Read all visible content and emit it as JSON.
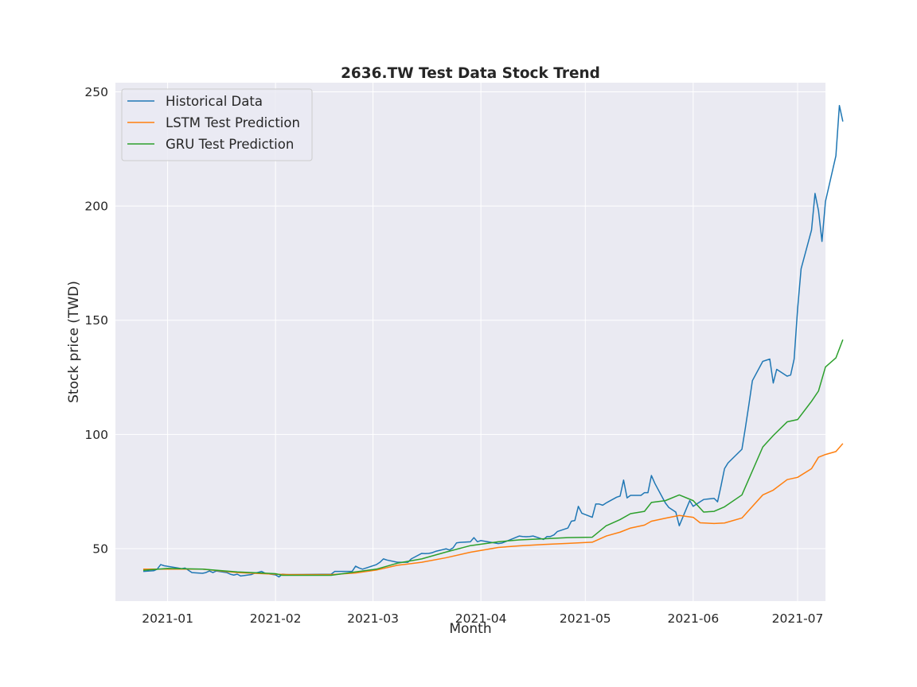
{
  "chart_data": {
    "type": "line",
    "title": "2636.TW  Test Data Stock Trend",
    "xlabel": "Month",
    "ylabel": "Stock price (TWD)",
    "x_type": "date",
    "xlim": [
      "2020-12-17",
      "2021-07-09"
    ],
    "ylim": [
      27,
      254
    ],
    "x_ticks": [
      "2021-01-01",
      "2021-02-01",
      "2021-03-01",
      "2021-04-01",
      "2021-05-01",
      "2021-06-01",
      "2021-07-01"
    ],
    "x_tick_labels": [
      "2021-01",
      "2021-02",
      "2021-03",
      "2021-04",
      "2021-05",
      "2021-06",
      "2021-07"
    ],
    "y_ticks": [
      50,
      100,
      150,
      200,
      250
    ],
    "y_tick_labels": [
      "50",
      "100",
      "150",
      "200",
      "250"
    ],
    "grid": true,
    "legend_position": "upper-left",
    "series": [
      {
        "name": "Historical Data",
        "color": "#1f77b4",
        "points": [
          [
            "2020-12-25",
            40
          ],
          [
            "2020-12-28",
            40.3
          ],
          [
            "2020-12-29",
            41
          ],
          [
            "2020-12-30",
            43
          ],
          [
            "2020-12-31",
            42.5
          ],
          [
            "2021-01-04",
            41.5
          ],
          [
            "2021-01-05",
            41.2
          ],
          [
            "2021-01-06",
            41.5
          ],
          [
            "2021-01-07",
            40.5
          ],
          [
            "2021-01-08",
            39.5
          ],
          [
            "2021-01-11",
            39.2
          ],
          [
            "2021-01-12",
            39.5
          ],
          [
            "2021-01-13",
            40.2
          ],
          [
            "2021-01-14",
            39.5
          ],
          [
            "2021-01-15",
            40.2
          ],
          [
            "2021-01-18",
            39.5
          ],
          [
            "2021-01-19",
            38.8
          ],
          [
            "2021-01-20",
            38.4
          ],
          [
            "2021-01-21",
            38.8
          ],
          [
            "2021-01-22",
            38
          ],
          [
            "2021-01-25",
            38.6
          ],
          [
            "2021-01-26",
            39.2
          ],
          [
            "2021-01-27",
            39.6
          ],
          [
            "2021-01-28",
            40
          ],
          [
            "2021-01-29",
            39.2
          ],
          [
            "2021-02-01",
            38.5
          ],
          [
            "2021-02-02",
            37.6
          ],
          [
            "2021-02-03",
            38.8
          ],
          [
            "2021-02-04",
            38.6
          ],
          [
            "2021-02-05",
            38.6
          ],
          [
            "2021-02-17",
            38.8
          ],
          [
            "2021-02-18",
            40
          ],
          [
            "2021-02-19",
            40
          ],
          [
            "2021-02-22",
            40
          ],
          [
            "2021-02-23",
            40
          ],
          [
            "2021-02-24",
            42.3
          ],
          [
            "2021-02-25",
            41.5
          ],
          [
            "2021-02-26",
            41
          ],
          [
            "2021-03-02",
            43
          ],
          [
            "2021-03-03",
            44
          ],
          [
            "2021-03-04",
            45.5
          ],
          [
            "2021-03-05",
            45
          ],
          [
            "2021-03-08",
            44
          ],
          [
            "2021-03-09",
            44
          ],
          [
            "2021-03-10",
            44
          ],
          [
            "2021-03-11",
            44
          ],
          [
            "2021-03-12",
            45.5
          ],
          [
            "2021-03-15",
            47.9
          ],
          [
            "2021-03-16",
            47.8
          ],
          [
            "2021-03-17",
            47.9
          ],
          [
            "2021-03-18",
            48.2
          ],
          [
            "2021-03-19",
            48.8
          ],
          [
            "2021-03-22",
            49.9
          ],
          [
            "2021-03-23",
            49.4
          ],
          [
            "2021-03-24",
            50.3
          ],
          [
            "2021-03-25",
            52.5
          ],
          [
            "2021-03-26",
            52.7
          ],
          [
            "2021-03-29",
            53
          ],
          [
            "2021-03-30",
            54.8
          ],
          [
            "2021-03-31",
            53
          ],
          [
            "2021-04-01",
            53.5
          ],
          [
            "2021-04-06",
            52.2
          ],
          [
            "2021-04-07",
            52.4
          ],
          [
            "2021-04-08",
            53
          ],
          [
            "2021-04-09",
            53.6
          ],
          [
            "2021-04-12",
            55.5
          ],
          [
            "2021-04-13",
            55.3
          ],
          [
            "2021-04-14",
            55.2
          ],
          [
            "2021-04-15",
            55.3
          ],
          [
            "2021-04-16",
            55.5
          ],
          [
            "2021-04-19",
            54
          ],
          [
            "2021-04-20",
            55.3
          ],
          [
            "2021-04-21",
            55.3
          ],
          [
            "2021-04-22",
            56
          ],
          [
            "2021-04-23",
            57.5
          ],
          [
            "2021-04-26",
            59
          ],
          [
            "2021-04-27",
            62
          ],
          [
            "2021-04-28",
            62.3
          ],
          [
            "2021-04-29",
            68.5
          ],
          [
            "2021-04-30",
            65.5
          ],
          [
            "2021-05-03",
            63.7
          ],
          [
            "2021-05-04",
            69.5
          ],
          [
            "2021-05-05",
            69.5
          ],
          [
            "2021-05-06",
            69
          ],
          [
            "2021-05-07",
            70
          ],
          [
            "2021-05-10",
            72.5
          ],
          [
            "2021-05-11",
            73
          ],
          [
            "2021-05-12",
            80
          ],
          [
            "2021-05-13",
            72.2
          ],
          [
            "2021-05-14",
            73.3
          ],
          [
            "2021-05-17",
            73.3
          ],
          [
            "2021-05-18",
            74.5
          ],
          [
            "2021-05-19",
            74.5
          ],
          [
            "2021-05-20",
            82
          ],
          [
            "2021-05-21",
            78.5
          ],
          [
            "2021-05-24",
            70
          ],
          [
            "2021-05-25",
            68
          ],
          [
            "2021-05-26",
            67
          ],
          [
            "2021-05-27",
            66
          ],
          [
            "2021-05-28",
            60
          ],
          [
            "2021-05-31",
            71
          ],
          [
            "2021-06-01",
            68.5
          ],
          [
            "2021-06-02",
            69.5
          ],
          [
            "2021-06-03",
            70.5
          ],
          [
            "2021-06-04",
            71.5
          ],
          [
            "2021-06-07",
            72
          ],
          [
            "2021-06-08",
            70.5
          ],
          [
            "2021-06-09",
            77.5
          ],
          [
            "2021-06-10",
            85
          ],
          [
            "2021-06-11",
            87.5
          ],
          [
            "2021-06-15",
            93.5
          ],
          [
            "2021-06-16",
            103
          ],
          [
            "2021-06-17",
            113
          ],
          [
            "2021-06-18",
            123.5
          ],
          [
            "2021-06-21",
            132
          ],
          [
            "2021-06-22",
            132.5
          ],
          [
            "2021-06-23",
            133
          ],
          [
            "2021-06-24",
            122.5
          ],
          [
            "2021-06-25",
            128.5
          ],
          [
            "2021-06-28",
            125.5
          ],
          [
            "2021-06-29",
            126
          ],
          [
            "2021-06-30",
            133
          ],
          [
            "2021-07-01",
            155
          ],
          [
            "2021-07-02",
            172.5
          ],
          [
            "2021-07-05",
            189.5
          ],
          [
            "2021-07-06",
            205.5
          ],
          [
            "2021-07-07",
            198
          ],
          [
            "2021-07-08",
            184.5
          ],
          [
            "2021-07-09",
            202
          ],
          [
            "2021-07-12",
            222
          ],
          [
            "2021-07-13",
            244
          ],
          [
            "2021-07-14",
            237
          ]
        ]
      },
      {
        "name": "LSTM Test Prediction",
        "color": "#ff7f0e",
        "points": [
          [
            "2020-12-25",
            41
          ],
          [
            "2021-01-01",
            41
          ],
          [
            "2021-01-11",
            41
          ],
          [
            "2021-01-21",
            39.5
          ],
          [
            "2021-02-01",
            38.8
          ],
          [
            "2021-02-05",
            38.6
          ],
          [
            "2021-02-17",
            38.6
          ],
          [
            "2021-02-24",
            39.3
          ],
          [
            "2021-03-02",
            40.6
          ],
          [
            "2021-03-08",
            42.7
          ],
          [
            "2021-03-15",
            44
          ],
          [
            "2021-03-22",
            46
          ],
          [
            "2021-03-29",
            48.4
          ],
          [
            "2021-04-06",
            50.5
          ],
          [
            "2021-04-12",
            51.2
          ],
          [
            "2021-04-19",
            51.8
          ],
          [
            "2021-04-26",
            52.3
          ],
          [
            "2021-05-03",
            52.8
          ],
          [
            "2021-05-07",
            55.5
          ],
          [
            "2021-05-11",
            57.2
          ],
          [
            "2021-05-14",
            59
          ],
          [
            "2021-05-18",
            60.3
          ],
          [
            "2021-05-20",
            62
          ],
          [
            "2021-05-24",
            63.3
          ],
          [
            "2021-05-28",
            64.5
          ],
          [
            "2021-06-01",
            63.7
          ],
          [
            "2021-06-03",
            61.3
          ],
          [
            "2021-06-07",
            61
          ],
          [
            "2021-06-10",
            61.2
          ],
          [
            "2021-06-15",
            63.4
          ],
          [
            "2021-06-21",
            73.5
          ],
          [
            "2021-06-24",
            75.6
          ],
          [
            "2021-06-28",
            80.2
          ],
          [
            "2021-07-01",
            81.2
          ],
          [
            "2021-07-05",
            85
          ],
          [
            "2021-07-07",
            90
          ],
          [
            "2021-07-09",
            91.2
          ],
          [
            "2021-07-12",
            92.5
          ],
          [
            "2021-07-14",
            96
          ]
        ]
      },
      {
        "name": "GRU Test Prediction",
        "color": "#2ca02c",
        "points": [
          [
            "2020-12-25",
            40.5
          ],
          [
            "2021-01-01",
            41.3
          ],
          [
            "2021-01-11",
            41
          ],
          [
            "2021-01-21",
            39.8
          ],
          [
            "2021-02-01",
            39
          ],
          [
            "2021-02-03",
            38.3
          ],
          [
            "2021-02-17",
            38.3
          ],
          [
            "2021-02-24",
            39.8
          ],
          [
            "2021-03-02",
            41
          ],
          [
            "2021-03-08",
            43.6
          ],
          [
            "2021-03-15",
            45.5
          ],
          [
            "2021-03-22",
            48.5
          ],
          [
            "2021-03-29",
            51.3
          ],
          [
            "2021-04-06",
            53
          ],
          [
            "2021-04-12",
            53.8
          ],
          [
            "2021-04-19",
            54.3
          ],
          [
            "2021-04-26",
            54.8
          ],
          [
            "2021-05-03",
            55
          ],
          [
            "2021-05-07",
            60
          ],
          [
            "2021-05-11",
            62.7
          ],
          [
            "2021-05-14",
            65.3
          ],
          [
            "2021-05-18",
            66.3
          ],
          [
            "2021-05-20",
            70.2
          ],
          [
            "2021-05-24",
            71
          ],
          [
            "2021-05-28",
            73.5
          ],
          [
            "2021-06-01",
            71
          ],
          [
            "2021-06-04",
            66
          ],
          [
            "2021-06-07",
            66.3
          ],
          [
            "2021-06-10",
            68.3
          ],
          [
            "2021-06-15",
            73.5
          ],
          [
            "2021-06-21",
            94.5
          ],
          [
            "2021-06-24",
            99.5
          ],
          [
            "2021-06-28",
            105.5
          ],
          [
            "2021-07-01",
            106.5
          ],
          [
            "2021-07-05",
            114.5
          ],
          [
            "2021-07-07",
            119
          ],
          [
            "2021-07-09",
            129.5
          ],
          [
            "2021-07-12",
            133.5
          ],
          [
            "2021-07-14",
            141.5
          ]
        ]
      }
    ]
  }
}
